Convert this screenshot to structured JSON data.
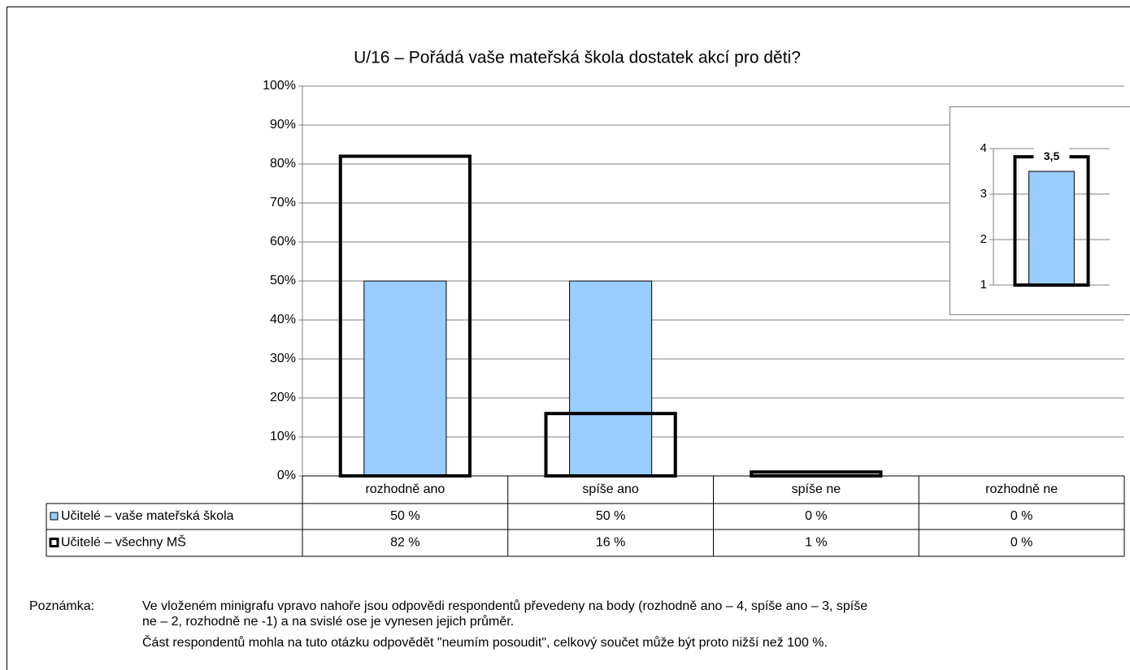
{
  "chart_data": [
    {
      "type": "bar",
      "title": "U/16 – Pořádá vaše mateřská škola dostatek akcí pro děti?",
      "categories": [
        "rozhodně ano",
        "spíše ano",
        "spíše ne",
        "rozhodně ne"
      ],
      "series": [
        {
          "name": "Učitelé – vaše mateřská škola",
          "color": "#99ccff",
          "style": "filled",
          "values": [
            50,
            50,
            0,
            0
          ],
          "value_labels": [
            "50 %",
            "50 %",
            "0 %",
            "0 %"
          ]
        },
        {
          "name": "Učitelé – všechny MŠ",
          "color": "#000000",
          "style": "outline",
          "values": [
            82,
            16,
            1,
            0
          ],
          "value_labels": [
            "82 %",
            "16 %",
            "1 %",
            "0 %"
          ]
        }
      ],
      "ylim": [
        0,
        100
      ],
      "yticks": [
        {
          "value": 0,
          "label": "0%"
        },
        {
          "value": 10,
          "label": "10%"
        },
        {
          "value": 20,
          "label": "20%"
        },
        {
          "value": 30,
          "label": "30%"
        },
        {
          "value": 40,
          "label": "40%"
        },
        {
          "value": 50,
          "label": "50%"
        },
        {
          "value": 60,
          "label": "60%"
        },
        {
          "value": 70,
          "label": "70%"
        },
        {
          "value": 80,
          "label": "80%"
        },
        {
          "value": 90,
          "label": "90%"
        },
        {
          "value": 100,
          "label": "100%"
        }
      ],
      "grid": true
    },
    {
      "type": "bar",
      "categories": [
        null
      ],
      "series": [
        {
          "color": "#99ccff",
          "style": "filled",
          "values": [
            3.5
          ],
          "value_labels": [
            "3,5"
          ]
        },
        {
          "color": "#000000",
          "style": "outline",
          "values": [
            3.82
          ]
        }
      ],
      "ylim": [
        1,
        4
      ],
      "yticks": [
        1,
        2,
        3,
        4
      ],
      "grid": true
    }
  ],
  "note": {
    "label": "Poznámka:",
    "lines": [
      "Ve vloženém minigrafu vpravo nahoře jsou odpovědi respondentů převedeny na body (rozhodně ano – 4, spíše ano – 3, spíše",
      "ne – 2, rozhodně ne -1) a na svislé ose je vynesen jejich průměr.",
      "Část respondentů mohla na tuto otázku odpovědět \"neumím posoudit\", celkový součet může být proto nižší než 100 %."
    ]
  }
}
